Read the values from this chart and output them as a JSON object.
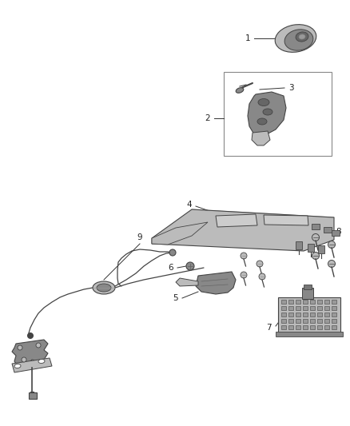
{
  "background_color": "#ffffff",
  "fig_width": 4.38,
  "fig_height": 5.33,
  "dpi": 100,
  "line_color": "#333333",
  "light_gray": "#bbbbbb",
  "mid_gray": "#888888",
  "dark_gray": "#444444",
  "text_color": "#222222",
  "font_size": 7.5
}
